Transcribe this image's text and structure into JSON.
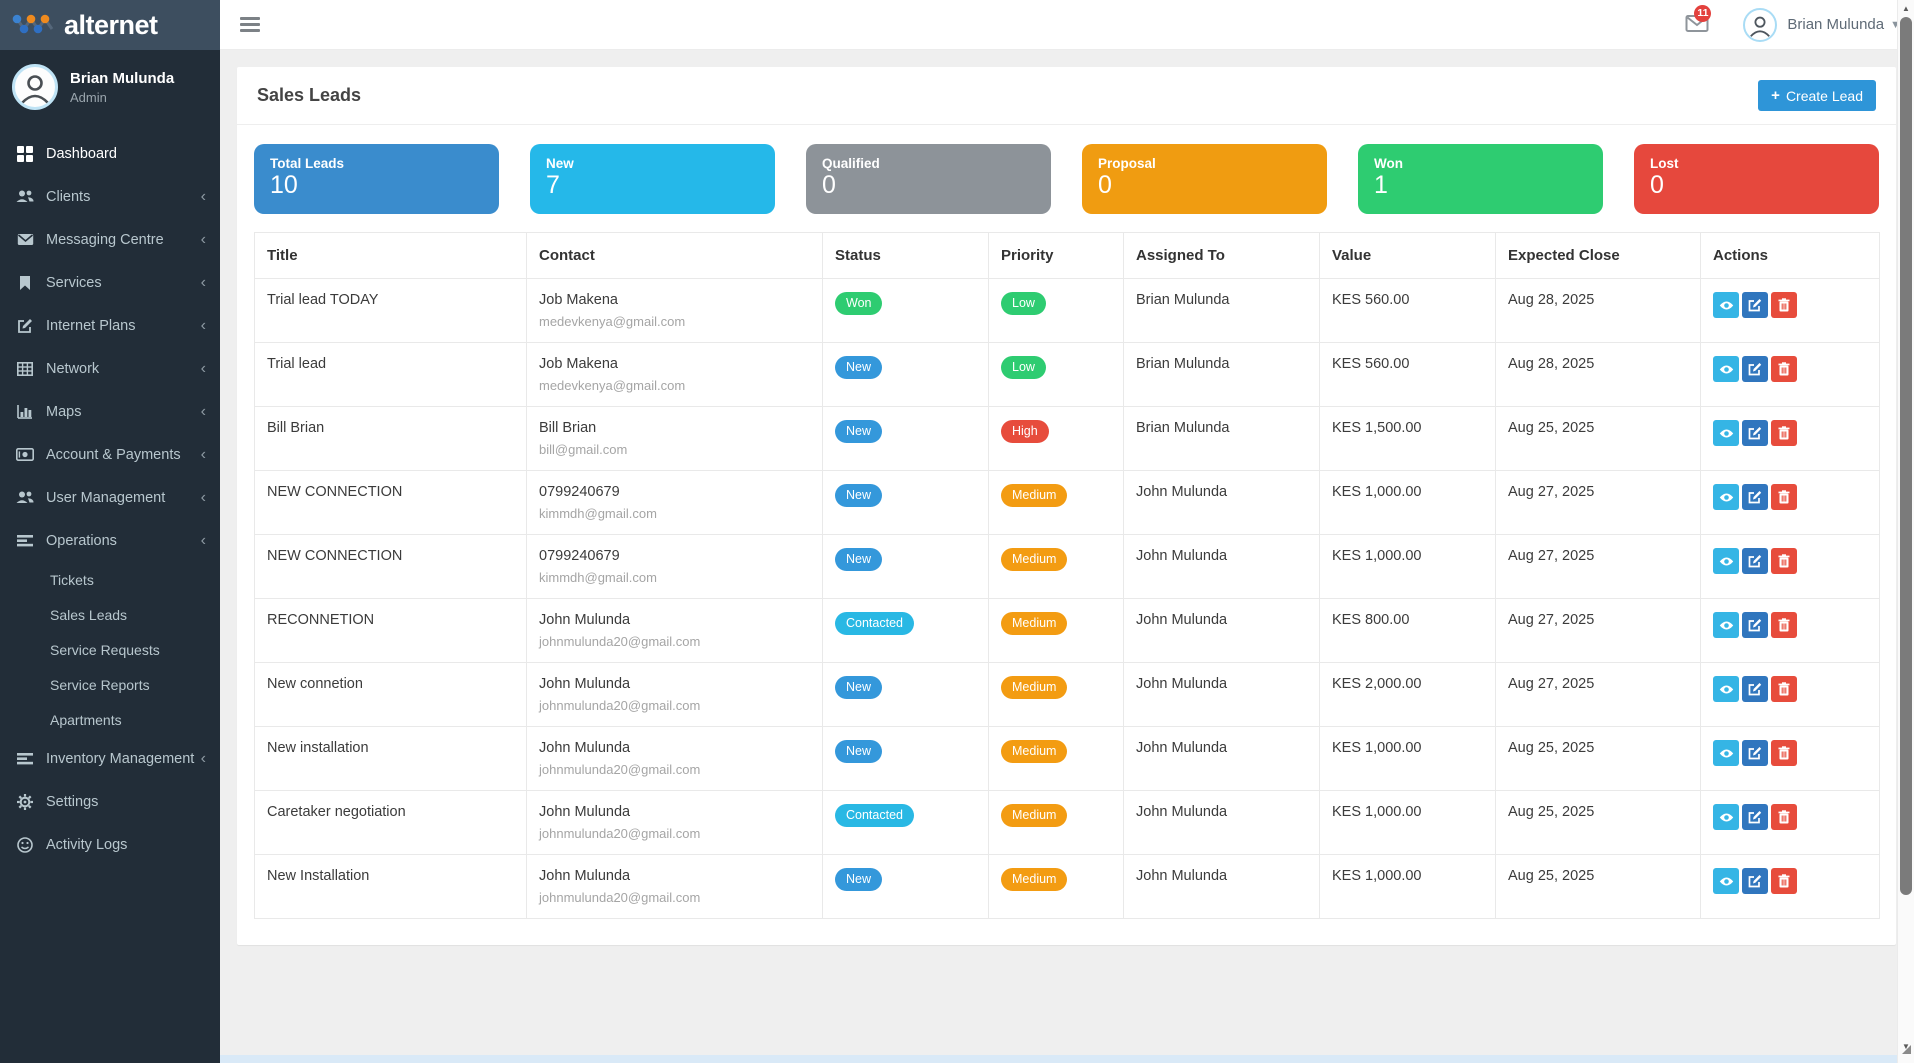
{
  "brand": {
    "name": "alternet"
  },
  "topbar": {
    "notifications_count": "11",
    "user_name": "Brian Mulunda"
  },
  "sidebar": {
    "user_name": "Brian Mulunda",
    "user_role": "Admin",
    "items": [
      {
        "label": "Dashboard",
        "icon": "grid",
        "active": true,
        "chevron": false
      },
      {
        "label": "Clients",
        "icon": "users",
        "chevron": true
      },
      {
        "label": "Messaging Centre",
        "icon": "envelope",
        "chevron": true
      },
      {
        "label": "Services",
        "icon": "bookmark",
        "chevron": true
      },
      {
        "label": "Internet Plans",
        "icon": "pencil-square",
        "chevron": true
      },
      {
        "label": "Network",
        "icon": "table",
        "chevron": true
      },
      {
        "label": "Maps",
        "icon": "bar-chart",
        "chevron": true
      },
      {
        "label": "Account & Payments",
        "icon": "money",
        "chevron": true
      },
      {
        "label": "User Management",
        "icon": "users",
        "chevron": true
      },
      {
        "label": "Operations",
        "icon": "list",
        "chevron": true,
        "expanded": true,
        "children": [
          "Tickets",
          "Sales Leads",
          "Service Requests",
          "Service Reports",
          "Apartments"
        ]
      },
      {
        "label": "Inventory Management",
        "icon": "list",
        "chevron": true
      },
      {
        "label": "Settings",
        "icon": "gear",
        "chevron": false
      },
      {
        "label": "Activity Logs",
        "icon": "smiley",
        "chevron": false
      }
    ]
  },
  "page": {
    "title": "Sales Leads",
    "create_button_label": "Create Lead",
    "create_button_color": "#2e95d8"
  },
  "stats": [
    {
      "label": "Total Leads",
      "value": "10",
      "color": "#3a8ccd"
    },
    {
      "label": "New",
      "value": "7",
      "color": "#25b8e9"
    },
    {
      "label": "Qualified",
      "value": "0",
      "color": "#8d9399"
    },
    {
      "label": "Proposal",
      "value": "0",
      "color": "#f09c11"
    },
    {
      "label": "Won",
      "value": "1",
      "color": "#2ecc71"
    },
    {
      "label": "Lost",
      "value": "0",
      "color": "#e6483d"
    }
  ],
  "table": {
    "headers": [
      "Title",
      "Contact",
      "Status",
      "Priority",
      "Assigned To",
      "Value",
      "Expected Close",
      "Actions"
    ],
    "status_colors": {
      "Won": "#2ecc71",
      "New": "#3498db",
      "Contacted": "#29b8e4"
    },
    "priority_colors": {
      "Low": "#2ecc71",
      "High": "#e74c3c",
      "Medium": "#f39c12"
    },
    "actions": [
      {
        "name": "view",
        "icon": "eye",
        "color": "#35b5e5"
      },
      {
        "name": "edit",
        "icon": "edit",
        "color": "#3076be"
      },
      {
        "name": "delete",
        "icon": "trash",
        "color": "#e74c3c"
      }
    ],
    "rows": [
      {
        "title": "Trial lead TODAY",
        "contact_name": "Job Makena",
        "contact_email": "medevkenya@gmail.com",
        "status": "Won",
        "priority": "Low",
        "assigned_to": "Brian Mulunda",
        "value": "KES 560.00",
        "expected_close": "Aug 28, 2025"
      },
      {
        "title": "Trial lead",
        "contact_name": "Job Makena",
        "contact_email": "medevkenya@gmail.com",
        "status": "New",
        "priority": "Low",
        "assigned_to": "Brian Mulunda",
        "value": "KES 560.00",
        "expected_close": "Aug 28, 2025"
      },
      {
        "title": "Bill Brian",
        "contact_name": "Bill Brian",
        "contact_email": "bill@gmail.com",
        "status": "New",
        "priority": "High",
        "assigned_to": "Brian Mulunda",
        "value": "KES 1,500.00",
        "expected_close": "Aug 25, 2025"
      },
      {
        "title": "NEW CONNECTION",
        "contact_name": "0799240679",
        "contact_email": "kimmdh@gmail.com",
        "status": "New",
        "priority": "Medium",
        "assigned_to": "John Mulunda",
        "value": "KES 1,000.00",
        "expected_close": "Aug 27, 2025"
      },
      {
        "title": "NEW CONNECTION",
        "contact_name": "0799240679",
        "contact_email": "kimmdh@gmail.com",
        "status": "New",
        "priority": "Medium",
        "assigned_to": "John Mulunda",
        "value": "KES 1,000.00",
        "expected_close": "Aug 27, 2025"
      },
      {
        "title": "RECONNETION",
        "contact_name": "John Mulunda",
        "contact_email": "johnmulunda20@gmail.com",
        "status": "Contacted",
        "priority": "Medium",
        "assigned_to": "John Mulunda",
        "value": "KES 800.00",
        "expected_close": "Aug 27, 2025"
      },
      {
        "title": "New connetion",
        "contact_name": "John Mulunda",
        "contact_email": "johnmulunda20@gmail.com",
        "status": "New",
        "priority": "Medium",
        "assigned_to": "John Mulunda",
        "value": "KES 2,000.00",
        "expected_close": "Aug 27, 2025"
      },
      {
        "title": "New installation",
        "contact_name": "John Mulunda",
        "contact_email": "johnmulunda20@gmail.com",
        "status": "New",
        "priority": "Medium",
        "assigned_to": "John Mulunda",
        "value": "KES 1,000.00",
        "expected_close": "Aug 25, 2025"
      },
      {
        "title": "Caretaker negotiation",
        "contact_name": "John Mulunda",
        "contact_email": "johnmulunda20@gmail.com",
        "status": "Contacted",
        "priority": "Medium",
        "assigned_to": "John Mulunda",
        "value": "KES 1,000.00",
        "expected_close": "Aug 25, 2025"
      },
      {
        "title": "New Installation",
        "contact_name": "John Mulunda",
        "contact_email": "johnmulunda20@gmail.com",
        "status": "New",
        "priority": "Medium",
        "assigned_to": "John Mulunda",
        "value": "KES 1,000.00",
        "expected_close": "Aug 25, 2025"
      }
    ]
  }
}
